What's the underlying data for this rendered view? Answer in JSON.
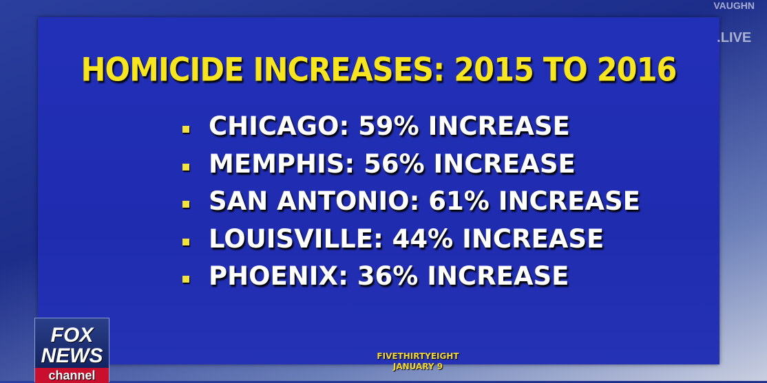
{
  "header": {
    "title": "HOMICIDE INCREASES: 2015 TO 2016"
  },
  "items": [
    "CHICAGO: 59% INCREASE",
    "MEMPHIS: 56% INCREASE",
    "SAN ANTONIO: 61% INCREASE",
    "LOUISVILLE: 44% INCREASE",
    "PHOENIX: 36% INCREASE"
  ],
  "source": {
    "name": "FIVETHIRTYEIGHT",
    "date": "JANUARY 9"
  },
  "logo": {
    "line1": "FOX",
    "line2": "NEWS",
    "line3": "channel"
  },
  "watermark": {
    "line1": "VAUGHN",
    "line2": ".LIVE"
  }
}
